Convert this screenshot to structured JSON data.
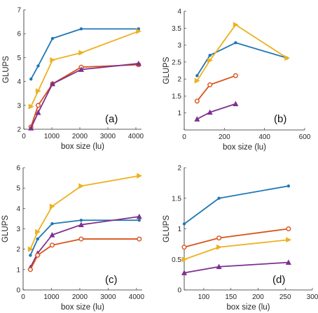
{
  "colors": {
    "blue": "#1f77b4",
    "orange": "#d95319",
    "yellow": "#edb120",
    "purple": "#7e2f8e"
  },
  "chart_data": [
    {
      "type": "line",
      "panel_label": "(a)",
      "xlabel": "box size (lu)",
      "ylabel": "GLUPS",
      "xlim": [
        0,
        4200
      ],
      "ylim": [
        2,
        7
      ],
      "xticks": [
        0,
        1000,
        2000,
        3000,
        4000
      ],
      "yticks": [
        2,
        3,
        4,
        5,
        6,
        7
      ],
      "series": [
        {
          "color": "#1f77b4",
          "marker": "dot",
          "x": [
            256,
            512,
            1024,
            2048,
            4096
          ],
          "y": [
            4.1,
            4.65,
            5.8,
            6.2,
            6.2
          ]
        },
        {
          "color": "#edb120",
          "marker": "triangle-right",
          "x": [
            256,
            512,
            1024,
            2048,
            4096
          ],
          "y": [
            2.95,
            3.6,
            4.9,
            5.2,
            6.1
          ]
        },
        {
          "color": "#d95319",
          "marker": "circle",
          "x": [
            256,
            512,
            1024,
            2048,
            4096
          ],
          "y": [
            2.1,
            3.0,
            3.9,
            4.6,
            4.7
          ]
        },
        {
          "color": "#7e2f8e",
          "marker": "triangle-up",
          "x": [
            256,
            512,
            1024,
            2048,
            4096
          ],
          "y": [
            2.05,
            2.7,
            3.9,
            4.5,
            4.75
          ]
        }
      ]
    },
    {
      "type": "line",
      "panel_label": "(b)",
      "xlabel": "box size (lu)",
      "ylabel": "GLUPS",
      "xlim": [
        0,
        600
      ],
      "ylim": [
        0.5,
        4
      ],
      "xticks": [
        0,
        200,
        400,
        600
      ],
      "yticks": [
        1,
        1.5,
        2,
        2.5,
        3,
        3.5,
        4
      ],
      "series": [
        {
          "color": "#1f77b4",
          "marker": "dot",
          "x": [
            64,
            128,
            256,
            512
          ],
          "y": [
            2.1,
            2.7,
            3.07,
            2.62
          ]
        },
        {
          "color": "#edb120",
          "marker": "triangle-right",
          "x": [
            64,
            128,
            256,
            512
          ],
          "y": [
            1.95,
            2.55,
            3.6,
            2.62
          ]
        },
        {
          "color": "#d95319",
          "marker": "circle",
          "x": [
            64,
            128,
            256
          ],
          "y": [
            1.35,
            1.83,
            2.1
          ]
        },
        {
          "color": "#7e2f8e",
          "marker": "triangle-up",
          "x": [
            64,
            128,
            256
          ],
          "y": [
            0.82,
            1.02,
            1.27
          ]
        }
      ]
    },
    {
      "type": "line",
      "panel_label": "(c)",
      "xlabel": "box size (lu)",
      "ylabel": "GLUPS",
      "xlim": [
        0,
        4200
      ],
      "ylim": [
        0,
        6
      ],
      "xticks": [
        0,
        1000,
        2000,
        3000,
        4000
      ],
      "yticks": [
        0,
        1,
        2,
        3,
        4,
        5,
        6
      ],
      "series": [
        {
          "color": "#edb120",
          "marker": "triangle-right",
          "x": [
            256,
            512,
            1024,
            2048,
            4096
          ],
          "y": [
            2.0,
            2.85,
            4.1,
            5.1,
            5.6
          ]
        },
        {
          "color": "#1f77b4",
          "marker": "dot",
          "x": [
            256,
            512,
            1024,
            2048,
            4096
          ],
          "y": [
            1.7,
            2.5,
            3.25,
            3.42,
            3.42
          ]
        },
        {
          "color": "#7e2f8e",
          "marker": "triangle-up",
          "x": [
            256,
            512,
            1024,
            2048,
            4096
          ],
          "y": [
            1.1,
            1.8,
            2.7,
            3.2,
            3.6
          ]
        },
        {
          "color": "#d95319",
          "marker": "circle",
          "x": [
            256,
            512,
            1024,
            2048,
            4096
          ],
          "y": [
            1.0,
            1.7,
            2.2,
            2.5,
            2.5
          ]
        }
      ]
    },
    {
      "type": "line",
      "panel_label": "(d)",
      "xlabel": "box size (lu)",
      "ylabel": "GLUPS",
      "xlim": [
        64,
        300
      ],
      "ylim": [
        0,
        2
      ],
      "xticks": [
        100,
        150,
        200,
        250,
        300
      ],
      "yticks": [
        0,
        0.5,
        1,
        1.5,
        2
      ],
      "series": [
        {
          "color": "#1f77b4",
          "marker": "dot",
          "x": [
            64,
            128,
            256
          ],
          "y": [
            1.08,
            1.5,
            1.7
          ]
        },
        {
          "color": "#d95319",
          "marker": "circle",
          "x": [
            64,
            128,
            256
          ],
          "y": [
            0.7,
            0.85,
            1.0
          ]
        },
        {
          "color": "#edb120",
          "marker": "triangle-right",
          "x": [
            64,
            128,
            256
          ],
          "y": [
            0.5,
            0.7,
            0.82
          ]
        },
        {
          "color": "#7e2f8e",
          "marker": "triangle-up",
          "x": [
            64,
            128,
            256
          ],
          "y": [
            0.28,
            0.38,
            0.45
          ]
        }
      ]
    }
  ]
}
